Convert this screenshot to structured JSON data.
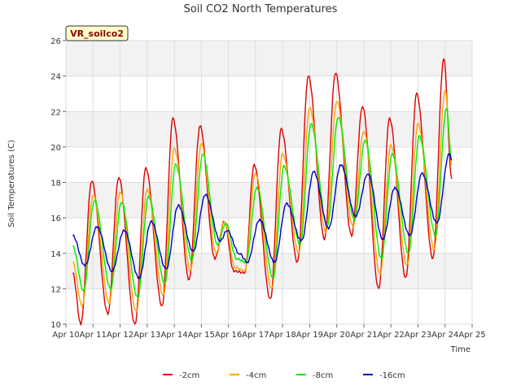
{
  "chart_data": {
    "type": "line",
    "title": "Soil CO2 North Temperatures",
    "xlabel": "Time",
    "ylabel": "Soil Temperatures (C)",
    "annotation": "VR_soilco2",
    "xlim": [
      10,
      25
    ],
    "ylim": [
      10,
      26
    ],
    "x_ticks": [
      {
        "value": 10,
        "label": "Apr 10"
      },
      {
        "value": 11,
        "label": "Apr 11"
      },
      {
        "value": 12,
        "label": "Apr 12"
      },
      {
        "value": 13,
        "label": "Apr 13"
      },
      {
        "value": 14,
        "label": "Apr 14"
      },
      {
        "value": 15,
        "label": "Apr 15"
      },
      {
        "value": 16,
        "label": "Apr 16"
      },
      {
        "value": 17,
        "label": "Apr 17"
      },
      {
        "value": 18,
        "label": "Apr 18"
      },
      {
        "value": 19,
        "label": "Apr 19"
      },
      {
        "value": 20,
        "label": "Apr 20"
      },
      {
        "value": 21,
        "label": "Apr 21"
      },
      {
        "value": 22,
        "label": "Apr 22"
      },
      {
        "value": 23,
        "label": "Apr 23"
      },
      {
        "value": 24,
        "label": "Apr 24"
      },
      {
        "value": 25,
        "label": "Apr 25"
      }
    ],
    "y_ticks": [
      10,
      12,
      14,
      16,
      18,
      20,
      22,
      24,
      26
    ],
    "legend_position": "bottom-center",
    "series": [
      {
        "name": "-2cm",
        "color": "#dd0000",
        "points": [
          [
            10.25,
            12.9
          ],
          [
            10.55,
            10.0
          ],
          [
            10.95,
            18.1
          ],
          [
            11.55,
            10.6
          ],
          [
            11.95,
            18.3
          ],
          [
            12.55,
            10.0
          ],
          [
            12.95,
            18.8
          ],
          [
            13.55,
            11.0
          ],
          [
            13.95,
            21.6
          ],
          [
            14.55,
            12.5
          ],
          [
            14.95,
            21.2
          ],
          [
            15.5,
            13.7
          ],
          [
            15.85,
            15.8
          ],
          [
            16.2,
            13.0
          ],
          [
            16.6,
            12.9
          ],
          [
            16.95,
            19.0
          ],
          [
            17.55,
            11.4
          ],
          [
            17.95,
            21.0
          ],
          [
            18.55,
            13.5
          ],
          [
            18.95,
            24.0
          ],
          [
            19.55,
            14.8
          ],
          [
            19.95,
            24.2
          ],
          [
            20.55,
            15.0
          ],
          [
            20.95,
            22.3
          ],
          [
            21.55,
            12.0
          ],
          [
            21.95,
            21.6
          ],
          [
            22.55,
            12.6
          ],
          [
            22.95,
            23.0
          ],
          [
            23.55,
            13.7
          ],
          [
            23.95,
            25.0
          ],
          [
            24.25,
            18.2
          ]
        ]
      },
      {
        "name": "-4cm",
        "color": "#ffa500",
        "points": [
          [
            10.25,
            13.5
          ],
          [
            10.6,
            11.0
          ],
          [
            11.0,
            17.3
          ],
          [
            11.6,
            11.2
          ],
          [
            12.0,
            17.5
          ],
          [
            12.6,
            10.7
          ],
          [
            13.0,
            17.6
          ],
          [
            13.6,
            11.6
          ],
          [
            14.0,
            19.9
          ],
          [
            14.6,
            13.0
          ],
          [
            15.0,
            20.2
          ],
          [
            15.55,
            14.0
          ],
          [
            15.85,
            15.8
          ],
          [
            16.25,
            13.2
          ],
          [
            16.6,
            13.0
          ],
          [
            17.0,
            18.5
          ],
          [
            17.6,
            12.0
          ],
          [
            18.0,
            19.6
          ],
          [
            18.6,
            14.0
          ],
          [
            19.0,
            22.2
          ],
          [
            19.6,
            15.2
          ],
          [
            20.0,
            22.6
          ],
          [
            20.6,
            15.5
          ],
          [
            21.0,
            20.9
          ],
          [
            21.6,
            12.8
          ],
          [
            22.0,
            20.1
          ],
          [
            22.6,
            13.3
          ],
          [
            23.0,
            21.3
          ],
          [
            23.6,
            14.2
          ],
          [
            24.0,
            23.2
          ],
          [
            24.25,
            19.0
          ]
        ]
      },
      {
        "name": "-8cm",
        "color": "#00ee00",
        "points": [
          [
            10.25,
            14.4
          ],
          [
            10.65,
            11.9
          ],
          [
            11.05,
            17.0
          ],
          [
            11.65,
            12.0
          ],
          [
            12.05,
            16.9
          ],
          [
            12.65,
            11.5
          ],
          [
            13.05,
            17.2
          ],
          [
            13.65,
            12.3
          ],
          [
            14.05,
            19.0
          ],
          [
            14.65,
            13.6
          ],
          [
            15.05,
            19.6
          ],
          [
            15.6,
            14.5
          ],
          [
            15.9,
            15.7
          ],
          [
            16.3,
            13.7
          ],
          [
            16.65,
            13.5
          ],
          [
            17.05,
            17.7
          ],
          [
            17.65,
            12.6
          ],
          [
            18.05,
            18.9
          ],
          [
            18.65,
            14.5
          ],
          [
            19.05,
            21.3
          ],
          [
            19.65,
            15.5
          ],
          [
            20.05,
            21.7
          ],
          [
            20.65,
            15.9
          ],
          [
            21.05,
            20.4
          ],
          [
            21.65,
            13.7
          ],
          [
            22.05,
            19.6
          ],
          [
            22.65,
            14.0
          ],
          [
            23.05,
            20.6
          ],
          [
            23.65,
            15.0
          ],
          [
            24.05,
            22.2
          ],
          [
            24.25,
            19.2
          ]
        ]
      },
      {
        "name": "-16cm",
        "color": "#0000cc",
        "points": [
          [
            10.25,
            15.0
          ],
          [
            10.7,
            13.3
          ],
          [
            11.15,
            15.5
          ],
          [
            11.7,
            13.0
          ],
          [
            12.15,
            15.3
          ],
          [
            12.7,
            12.6
          ],
          [
            13.15,
            15.8
          ],
          [
            13.7,
            13.1
          ],
          [
            14.15,
            16.7
          ],
          [
            14.7,
            14.1
          ],
          [
            15.15,
            17.3
          ],
          [
            15.7,
            14.7
          ],
          [
            15.95,
            15.3
          ],
          [
            16.4,
            14.0
          ],
          [
            16.7,
            13.5
          ],
          [
            17.15,
            15.9
          ],
          [
            17.7,
            13.5
          ],
          [
            18.15,
            16.8
          ],
          [
            18.7,
            14.7
          ],
          [
            19.15,
            18.6
          ],
          [
            19.7,
            15.4
          ],
          [
            20.15,
            19.0
          ],
          [
            20.7,
            16.1
          ],
          [
            21.15,
            18.5
          ],
          [
            21.7,
            14.8
          ],
          [
            22.15,
            17.7
          ],
          [
            22.7,
            15.0
          ],
          [
            23.15,
            18.5
          ],
          [
            23.7,
            15.7
          ],
          [
            24.15,
            19.6
          ],
          [
            24.25,
            19.3
          ]
        ]
      }
    ]
  }
}
